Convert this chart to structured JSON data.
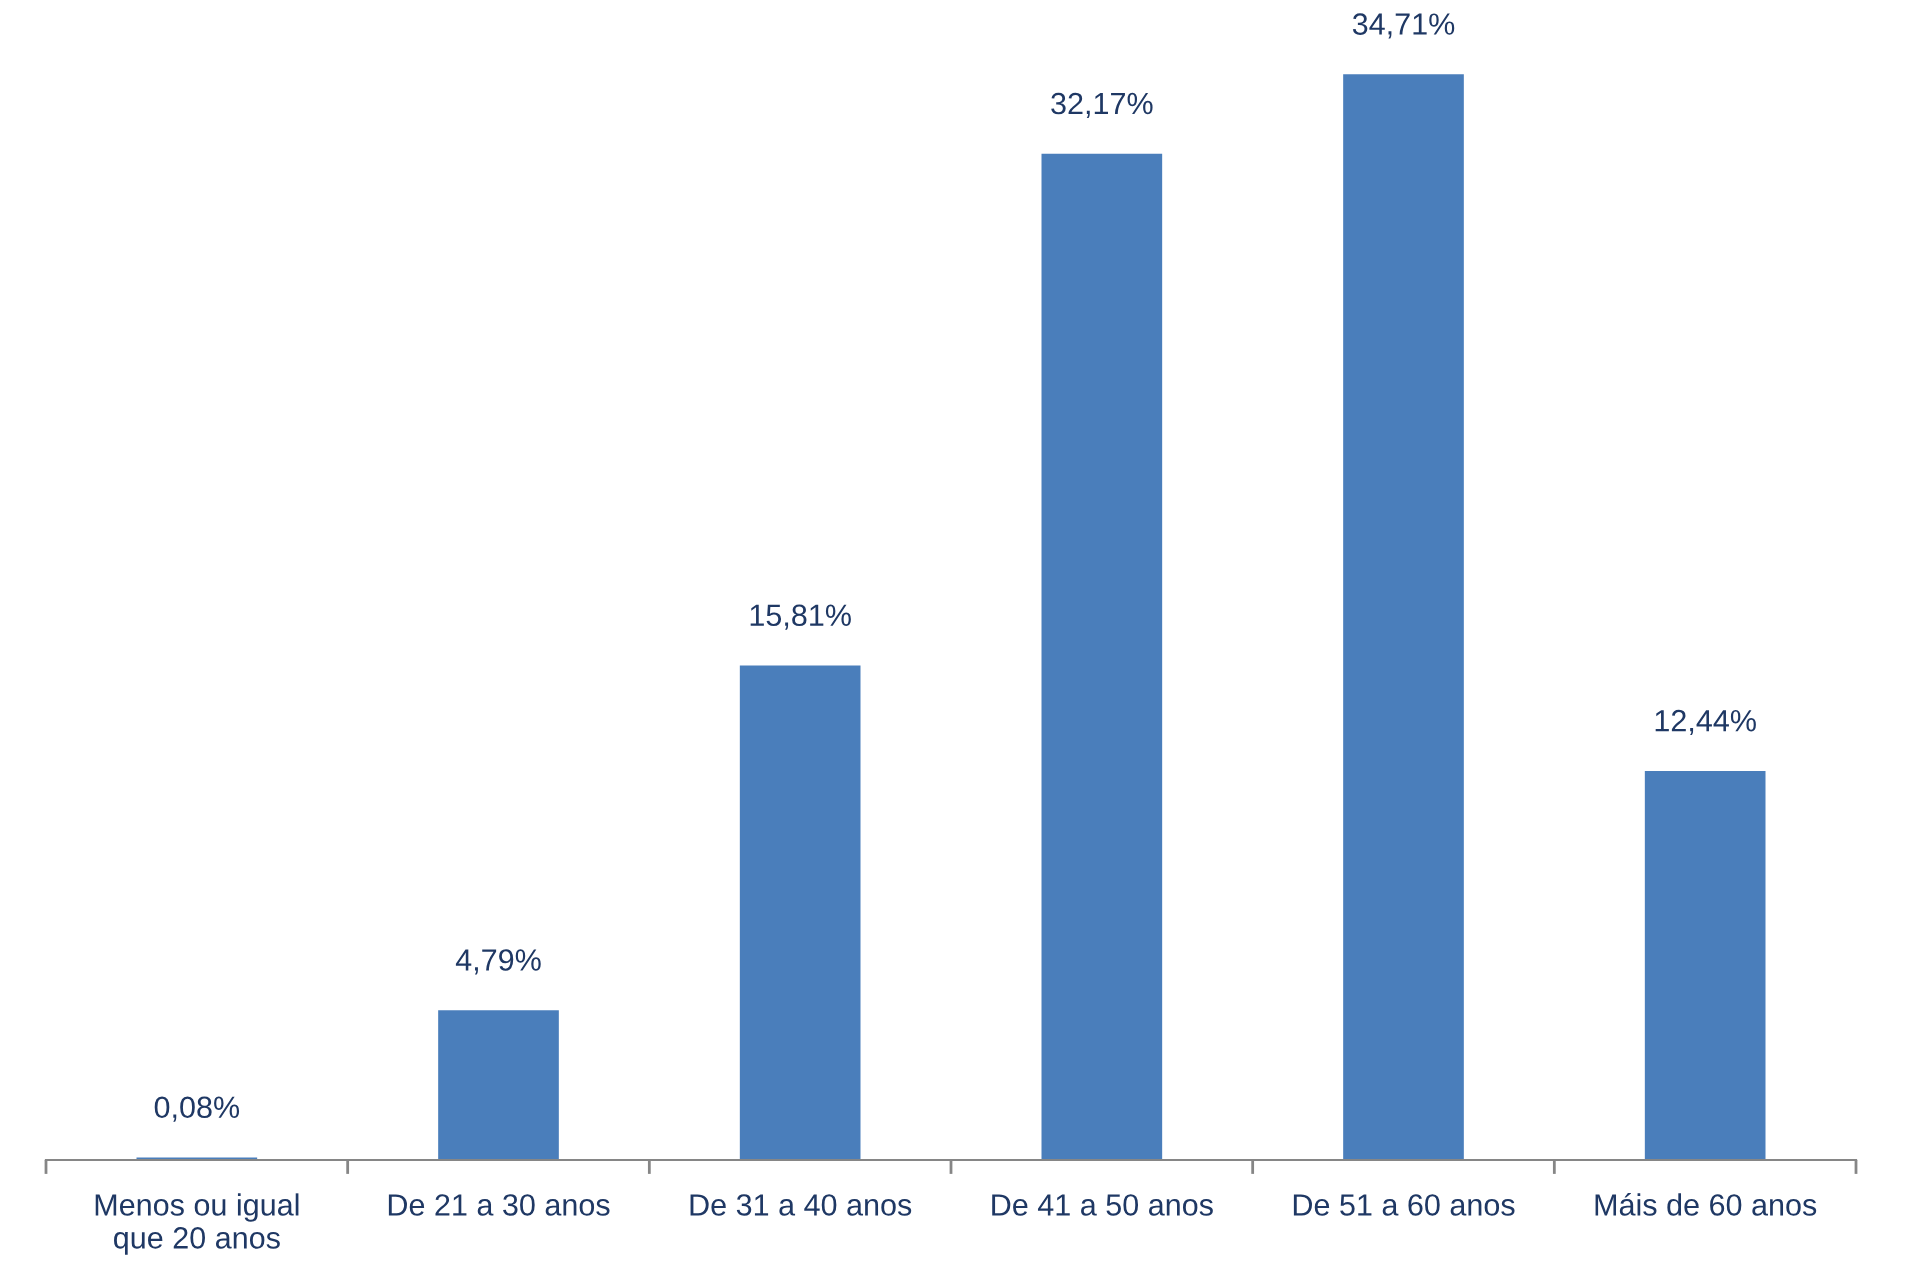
{
  "chart_data": {
    "type": "bar",
    "categories": [
      "Menos ou igual\nque 20 anos",
      "De 21 a 30 anos",
      "De 31 a 40 anos",
      "De 41 a 50 anos",
      "De 51 a 60 anos",
      "Máis de 60 anos"
    ],
    "values": [
      0.08,
      4.79,
      15.81,
      32.17,
      34.71,
      12.44
    ],
    "value_labels": [
      "0,08%",
      "4,79%",
      "15,81%",
      "32,17%",
      "34,71%",
      "12,44%"
    ],
    "color": "#4a7ebb"
  }
}
